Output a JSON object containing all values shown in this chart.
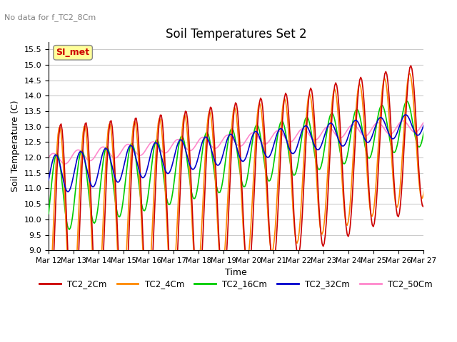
{
  "title": "Soil Temperatures Set 2",
  "subtitle": "No data for f_TC2_8Cm",
  "xlabel": "Time",
  "ylabel": "Soil Temperature (C)",
  "ylim": [
    9.0,
    15.75
  ],
  "yticks": [
    9.0,
    9.5,
    10.0,
    10.5,
    11.0,
    11.5,
    12.0,
    12.5,
    13.0,
    13.5,
    14.0,
    14.5,
    15.0,
    15.5
  ],
  "x_labels": [
    "Mar 12",
    "Mar 13",
    "Mar 14",
    "Mar 15",
    "Mar 16",
    "Mar 17",
    "Mar 18",
    "Mar 19",
    "Mar 20",
    "Mar 21",
    "Mar 22",
    "Mar 23",
    "Mar 24",
    "Mar 25",
    "Mar 26",
    "Mar 27"
  ],
  "colors": {
    "TC2_2Cm": "#cc0000",
    "TC2_4Cm": "#ff8800",
    "TC2_16Cm": "#00cc00",
    "TC2_32Cm": "#0000cc",
    "TC2_50Cm": "#ff88cc"
  },
  "legend_label": "SI_met",
  "legend_bg": "#ffff99",
  "background_color": "#ffffff",
  "plot_bg": "#ffffff",
  "grid_color": "#cccccc"
}
